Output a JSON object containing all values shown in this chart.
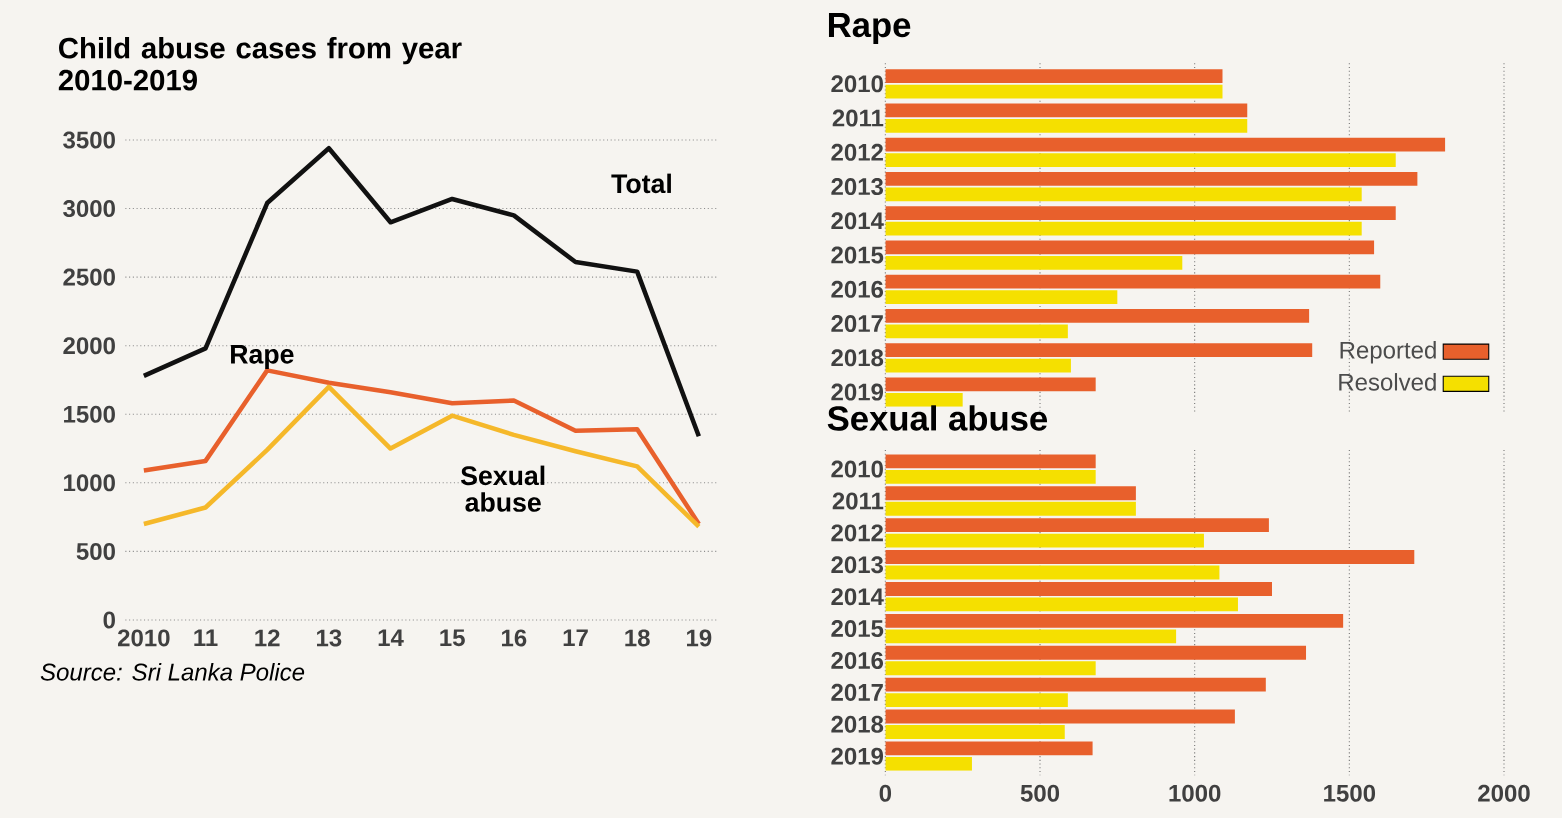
{
  "chart_data": [
    {
      "type": "line",
      "title": "Child abuse cases from year 2010-2019",
      "x": [
        2010,
        2011,
        2012,
        2013,
        2014,
        2015,
        2016,
        2017,
        2018,
        2019
      ],
      "xlim": [
        2009.7,
        2019.3
      ],
      "xticks": [
        {
          "value": 2010,
          "label": "2010"
        },
        {
          "value": 2011,
          "label": "11"
        },
        {
          "value": 2012,
          "label": "12"
        },
        {
          "value": 2013,
          "label": "13"
        },
        {
          "value": 2014,
          "label": "14"
        },
        {
          "value": 2015,
          "label": "15"
        },
        {
          "value": 2016,
          "label": "16"
        },
        {
          "value": 2017,
          "label": "17"
        },
        {
          "value": 2018,
          "label": "18"
        },
        {
          "value": 2019,
          "label": "19"
        }
      ],
      "ylim": [
        0,
        3500
      ],
      "yticks": [
        0,
        500,
        1000,
        1500,
        2000,
        2500,
        3000,
        3500
      ],
      "grid": "y",
      "series": [
        {
          "name": "Total",
          "color": "#111111",
          "values": [
            1780,
            1980,
            3040,
            3440,
            2900,
            3070,
            2950,
            2610,
            2540,
            1340
          ]
        },
        {
          "name": "Rape",
          "color": "#e8602c",
          "values": [
            1090,
            1160,
            1820,
            1730,
            1660,
            1580,
            1600,
            1380,
            1390,
            700
          ]
        },
        {
          "name": "Sexual abuse",
          "color": "#f5b82a",
          "values": [
            700,
            820,
            1240,
            1700,
            1250,
            1490,
            1350,
            1230,
            1120,
            680
          ]
        }
      ],
      "annotations": [
        "Source: Sri Lanka Police"
      ]
    },
    {
      "type": "bar",
      "orientation": "horizontal",
      "title": "Rape",
      "categories": [
        "2010",
        "2011",
        "2012",
        "2013",
        "2014",
        "2015",
        "2016",
        "2017",
        "2018",
        "2019"
      ],
      "series": [
        {
          "name": "Reported",
          "color": "#e8602c",
          "values": [
            1090,
            1170,
            1810,
            1720,
            1650,
            1580,
            1600,
            1370,
            1380,
            680
          ]
        },
        {
          "name": "Resolved",
          "color": "#f5e000",
          "values": [
            1090,
            1170,
            1650,
            1540,
            1540,
            960,
            750,
            590,
            600,
            250
          ]
        }
      ],
      "xlim": [
        0,
        2000
      ],
      "xticks": [
        0,
        500,
        1000,
        1500,
        2000
      ],
      "grid": "x",
      "legend": "bottom right",
      "tick_labels": "y"
    },
    {
      "type": "bar",
      "orientation": "horizontal",
      "title": "Sexual abuse",
      "categories": [
        "2010",
        "2011",
        "2012",
        "2013",
        "2014",
        "2015",
        "2016",
        "2017",
        "2018",
        "2019"
      ],
      "series": [
        {
          "color": "#e8602c",
          "values": [
            680,
            810,
            1240,
            1710,
            1250,
            1480,
            1360,
            1230,
            1130,
            670
          ]
        },
        {
          "color": "#f5e000",
          "values": [
            680,
            810,
            1030,
            1080,
            1140,
            940,
            680,
            590,
            580,
            280
          ]
        }
      ],
      "xlim": [
        0,
        2000
      ],
      "xticks": [
        0,
        500,
        1000,
        1500,
        2000
      ],
      "grid": "x"
    }
  ]
}
